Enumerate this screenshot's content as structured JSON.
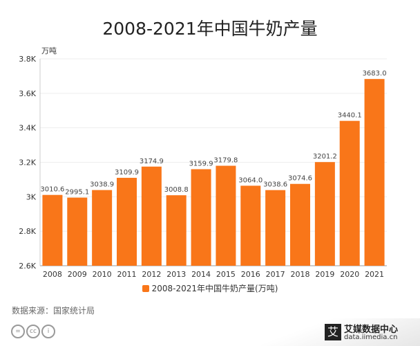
{
  "chart_data": {
    "type": "bar",
    "title": "2008-2021年中国牛奶产量",
    "ylabel": "万吨",
    "xlabel": "",
    "categories": [
      "2008",
      "2009",
      "2010",
      "2011",
      "2012",
      "2013",
      "2014",
      "2015",
      "2016",
      "2017",
      "2018",
      "2019",
      "2020",
      "2021"
    ],
    "values": [
      3010.6,
      2995.1,
      3038.9,
      3109.9,
      3174.9,
      3008.8,
      3159.9,
      3179.8,
      3064.0,
      3038.6,
      3074.6,
      3201.2,
      3440.1,
      3683.0
    ],
    "value_labels": [
      "3010.6",
      "2995.1",
      "3038.9",
      "3109.9",
      "3174.9",
      "3008.8",
      "3159.9",
      "3179.8",
      "3064.0",
      "3038.6",
      "3074.6",
      "3201.2",
      "3440.1",
      "3683.0"
    ],
    "ylim": [
      2600,
      3800
    ],
    "yticks": [
      2600,
      2800,
      3000,
      3200,
      3400,
      3600,
      3800
    ],
    "ytick_labels": [
      "2.6K",
      "2.8K",
      "3K",
      "3.2K",
      "3.4K",
      "3.6K",
      "3.8K"
    ],
    "legend": "2008-2021年中国牛奶产量(万吨)",
    "legend_position": "bottom",
    "grid": true,
    "color": "#f97619"
  },
  "source": "数据来源：国家统计局",
  "brand": {
    "name": "艾媒数据中心",
    "url": "data.iimedia.cn",
    "logo": "艾"
  },
  "license_icons": [
    "=",
    "cc",
    "i"
  ]
}
